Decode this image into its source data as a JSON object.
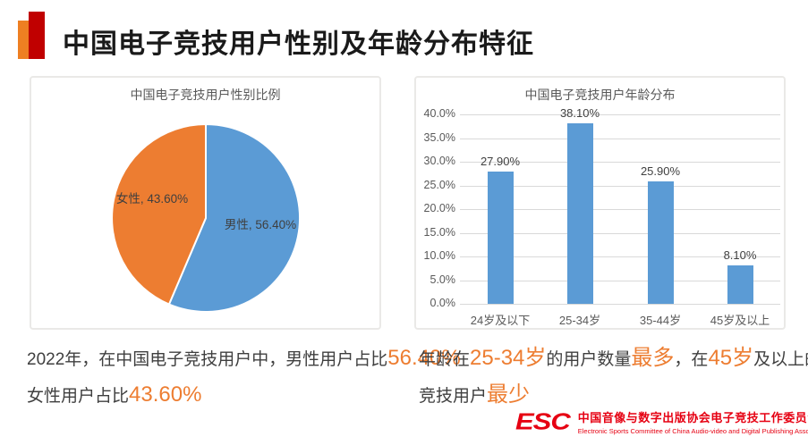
{
  "header": {
    "title": "中国电子竞技用户性别及年龄分布特征",
    "marker_orange": "#ee7f22",
    "marker_red": "#c00000"
  },
  "chart_data": [
    {
      "type": "pie",
      "title": "中国电子竞技用户性别比例",
      "slices": [
        {
          "name": "male",
          "label": "男性",
          "value": 56.4,
          "display": "男性, 56.40%",
          "color": "#5b9bd5"
        },
        {
          "name": "female",
          "label": "女性",
          "value": 43.6,
          "display": "女性, 43.60%",
          "color": "#ed7d31"
        }
      ],
      "start_angle": "top",
      "direction": "clockwise",
      "legend": "none"
    },
    {
      "type": "bar",
      "title": "中国电子竞技用户年龄分布",
      "categories": [
        "24岁及以下",
        "25-34岁",
        "35-44岁",
        "45岁及以上"
      ],
      "values": [
        27.9,
        38.1,
        25.9,
        8.1
      ],
      "data_labels": [
        "27.90%",
        "38.10%",
        "25.90%",
        "8.10%"
      ],
      "ylim": [
        0,
        40
      ],
      "ytick_step": 5,
      "yticks": [
        "0.0%",
        "5.0%",
        "10.0%",
        "15.0%",
        "20.0%",
        "25.0%",
        "30.0%",
        "35.0%",
        "40.0%"
      ],
      "bar_color": "#5b9bd5",
      "grid": true,
      "legend": "none"
    }
  ],
  "summary_left": {
    "lines": [
      [
        {
          "t": "2022年，在中国电子竞技用户中，男性用户占比",
          "hl": false
        },
        {
          "t": "56.40%",
          "hl": true
        }
      ],
      [
        {
          "t": "女性用户占比",
          "hl": false
        },
        {
          "t": "43.60%",
          "hl": true
        }
      ]
    ]
  },
  "summary_right": {
    "lines": [
      [
        {
          "t": "年龄在",
          "hl": false
        },
        {
          "t": "25-34岁",
          "hl": true
        },
        {
          "t": "的用户数量",
          "hl": false
        },
        {
          "t": "最多",
          "hl": true
        },
        {
          "t": "，在",
          "hl": false
        },
        {
          "t": "45岁",
          "hl": true
        },
        {
          "t": "及以上的电子",
          "hl": false
        }
      ],
      [
        {
          "t": "竞技用户",
          "hl": false
        },
        {
          "t": "最少",
          "hl": true
        }
      ]
    ]
  },
  "footer_logo": {
    "esc": "ESC",
    "cn": "中国音像与数字出版协会电子竞技工作委员会",
    "en": "Electronic Sports Committee of China Audio-video and Digital Publishing Association",
    "color": "#e60012"
  },
  "colors": {
    "highlight": "#ed7d31",
    "body_text": "#3f3f3f",
    "axis_text": "#595959",
    "gridline": "#d9d9d9"
  }
}
